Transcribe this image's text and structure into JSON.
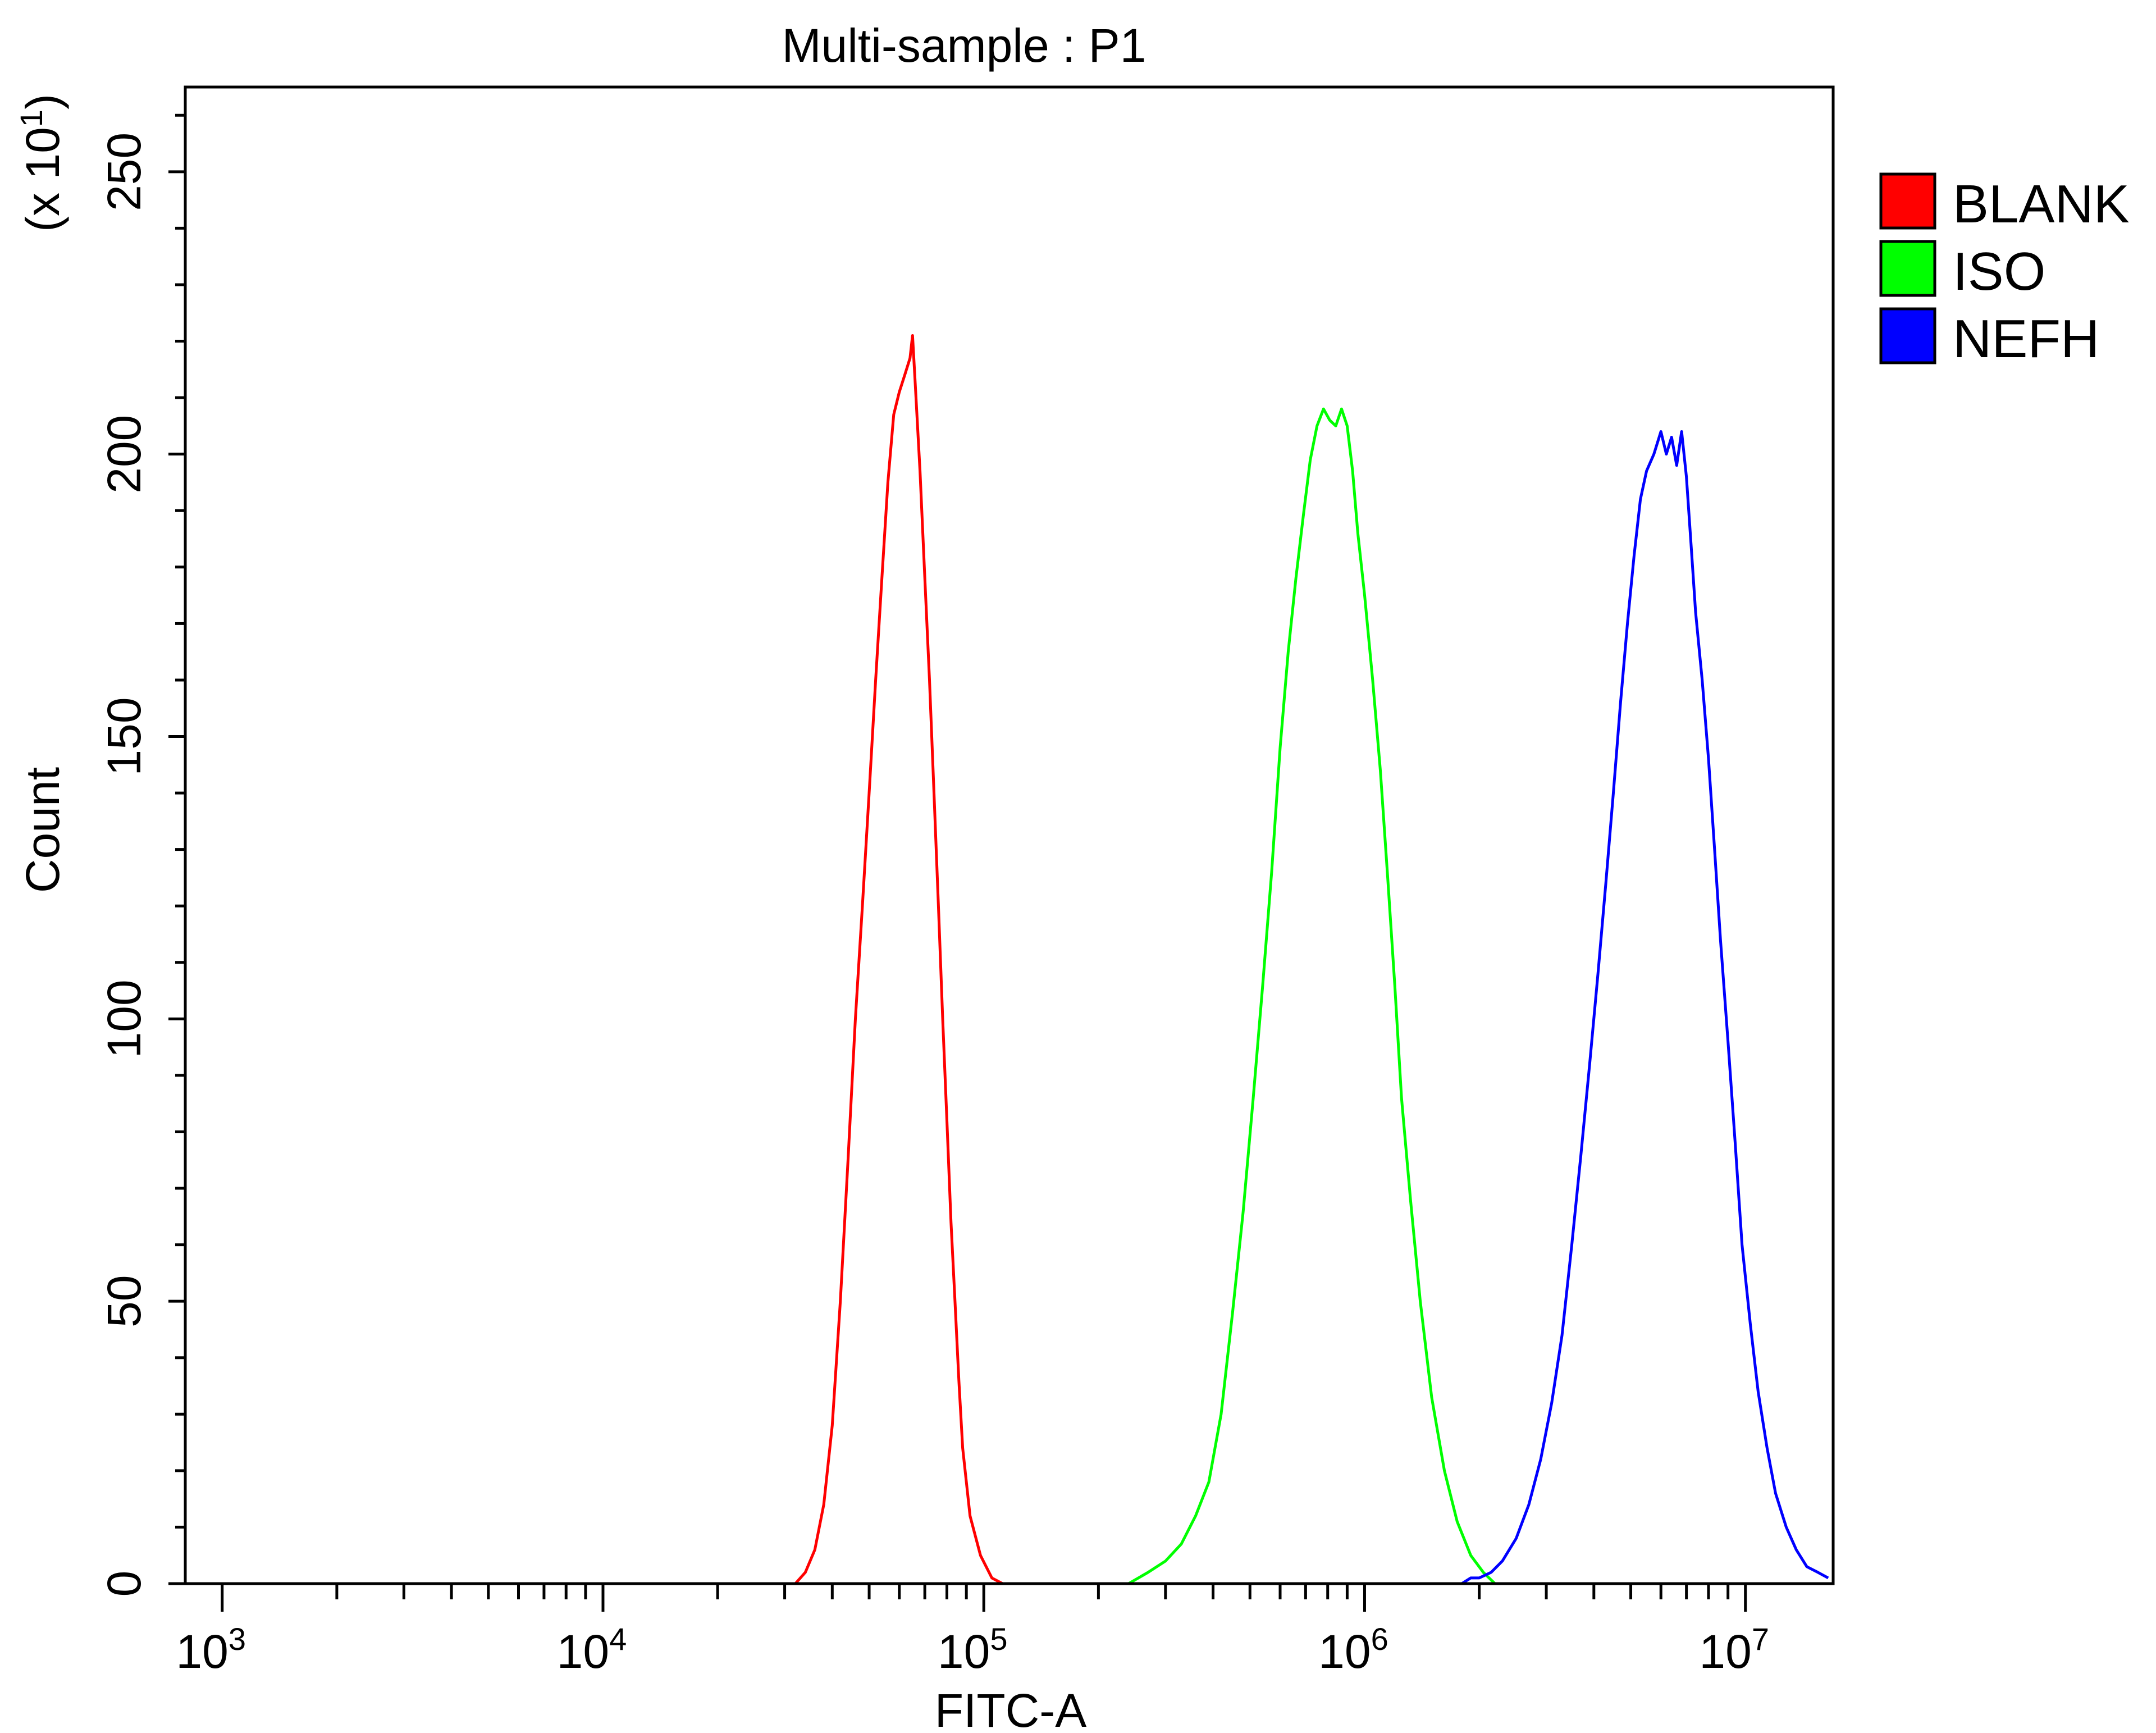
{
  "chart_data": {
    "type": "line",
    "title": "Multi-sample : P1",
    "xlabel": "FITC-A",
    "ylabel": "Count",
    "y_multiplier_label": "(x 10",
    "y_multiplier_exponent": "1",
    "y_multiplier_close": ")",
    "x_scale": "log",
    "xlim": [
      800,
      17000000
    ],
    "ylim": [
      0,
      265
    ],
    "x_major_ticks": [
      {
        "value": 1000,
        "base": "10",
        "exp": "3"
      },
      {
        "value": 10000,
        "base": "10",
        "exp": "4"
      },
      {
        "value": 100000,
        "base": "10",
        "exp": "5"
      },
      {
        "value": 1000000,
        "base": "10",
        "exp": "6"
      },
      {
        "value": 10000000,
        "base": "10",
        "exp": "7"
      }
    ],
    "y_major_ticks": [
      0,
      50,
      100,
      150,
      200,
      250
    ],
    "grid": false,
    "legend_position": "right",
    "series": [
      {
        "name": "BLANK",
        "color": "#ff0000",
        "points": [
          [
            32000,
            0
          ],
          [
            34000,
            2
          ],
          [
            36000,
            6
          ],
          [
            38000,
            14
          ],
          [
            40000,
            28
          ],
          [
            42000,
            50
          ],
          [
            44000,
            75
          ],
          [
            46000,
            100
          ],
          [
            48000,
            120
          ],
          [
            50000,
            140
          ],
          [
            52000,
            160
          ],
          [
            54000,
            178
          ],
          [
            56000,
            195
          ],
          [
            58000,
            207
          ],
          [
            60000,
            211
          ],
          [
            62000,
            214
          ],
          [
            64000,
            217
          ],
          [
            65000,
            221
          ],
          [
            66000,
            213
          ],
          [
            68000,
            197
          ],
          [
            70000,
            178
          ],
          [
            72000,
            160
          ],
          [
            74000,
            140
          ],
          [
            76000,
            120
          ],
          [
            78000,
            100
          ],
          [
            80000,
            82
          ],
          [
            82000,
            64
          ],
          [
            84000,
            50
          ],
          [
            86000,
            36
          ],
          [
            88000,
            24
          ],
          [
            92000,
            12
          ],
          [
            98000,
            5
          ],
          [
            105000,
            1
          ],
          [
            112000,
            0
          ]
        ]
      },
      {
        "name": "ISO",
        "color": "#00ff00",
        "points": [
          [
            240000,
            0
          ],
          [
            270000,
            2
          ],
          [
            300000,
            4
          ],
          [
            330000,
            7
          ],
          [
            360000,
            12
          ],
          [
            390000,
            18
          ],
          [
            420000,
            30
          ],
          [
            450000,
            48
          ],
          [
            480000,
            66
          ],
          [
            510000,
            86
          ],
          [
            540000,
            106
          ],
          [
            570000,
            126
          ],
          [
            600000,
            148
          ],
          [
            630000,
            165
          ],
          [
            660000,
            178
          ],
          [
            690000,
            189
          ],
          [
            720000,
            199
          ],
          [
            750000,
            205
          ],
          [
            780000,
            208
          ],
          [
            810000,
            206
          ],
          [
            840000,
            205
          ],
          [
            870000,
            208
          ],
          [
            900000,
            205
          ],
          [
            930000,
            197
          ],
          [
            960000,
            186
          ],
          [
            1000000,
            175
          ],
          [
            1050000,
            160
          ],
          [
            1100000,
            144
          ],
          [
            1150000,
            125
          ],
          [
            1200000,
            106
          ],
          [
            1250000,
            86
          ],
          [
            1320000,
            68
          ],
          [
            1400000,
            50
          ],
          [
            1500000,
            33
          ],
          [
            1620000,
            20
          ],
          [
            1750000,
            11
          ],
          [
            1900000,
            5
          ],
          [
            2050000,
            2
          ],
          [
            2200000,
            0
          ]
        ]
      },
      {
        "name": "NEFH",
        "color": "#0000ff",
        "points": [
          [
            1800000,
            0
          ],
          [
            1900000,
            1
          ],
          [
            2000000,
            1
          ],
          [
            2150000,
            2
          ],
          [
            2300000,
            4
          ],
          [
            2500000,
            8
          ],
          [
            2700000,
            14
          ],
          [
            2900000,
            22
          ],
          [
            3100000,
            32
          ],
          [
            3300000,
            44
          ],
          [
            3500000,
            60
          ],
          [
            3700000,
            76
          ],
          [
            3900000,
            92
          ],
          [
            4100000,
            108
          ],
          [
            4300000,
            124
          ],
          [
            4500000,
            140
          ],
          [
            4700000,
            156
          ],
          [
            4900000,
            170
          ],
          [
            5100000,
            182
          ],
          [
            5300000,
            192
          ],
          [
            5500000,
            197
          ],
          [
            5750000,
            200
          ],
          [
            6000000,
            204
          ],
          [
            6200000,
            200
          ],
          [
            6400000,
            203
          ],
          [
            6600000,
            198
          ],
          [
            6800000,
            204
          ],
          [
            7000000,
            196
          ],
          [
            7200000,
            184
          ],
          [
            7400000,
            172
          ],
          [
            7700000,
            160
          ],
          [
            8000000,
            146
          ],
          [
            8300000,
            130
          ],
          [
            8600000,
            114
          ],
          [
            9000000,
            96
          ],
          [
            9400000,
            78
          ],
          [
            9800000,
            60
          ],
          [
            10300000,
            46
          ],
          [
            10800000,
            34
          ],
          [
            11400000,
            24
          ],
          [
            12000000,
            16
          ],
          [
            12800000,
            10
          ],
          [
            13600000,
            6
          ],
          [
            14500000,
            3
          ],
          [
            15500000,
            2
          ],
          [
            16500000,
            1
          ]
        ]
      }
    ]
  }
}
